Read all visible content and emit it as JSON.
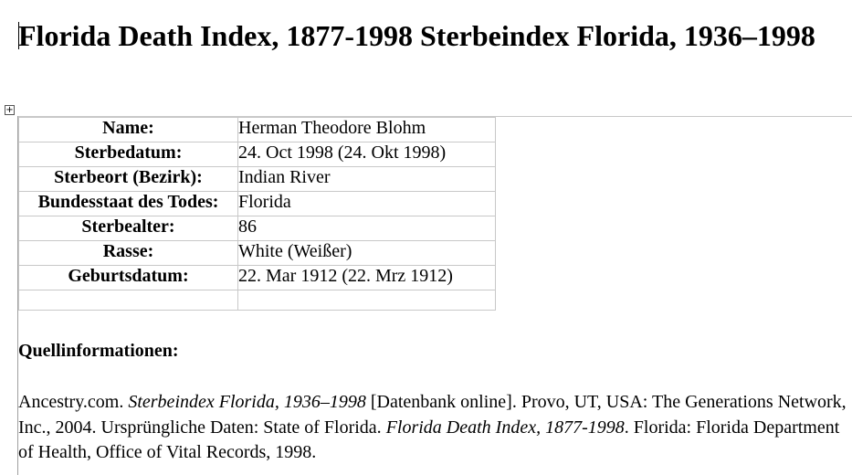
{
  "header": {
    "title": "Florida Death Index, 1877-1998 Sterbeindex Florida, 1936–1998"
  },
  "table": {
    "rows": [
      [
        "Name:",
        "Herman Theodore Blohm"
      ],
      [
        "Sterbedatum:",
        "24. Oct 1998 (24. Okt 1998)"
      ],
      [
        "Sterbeort (Bezirk):",
        "Indian River"
      ],
      [
        "Bundesstaat des Todes:",
        "Florida"
      ],
      [
        "Sterbealter:",
        "86"
      ],
      [
        "Rasse:",
        "White (Weißer)"
      ],
      [
        "Geburtsdatum:",
        "22. Mar 1912 (22. Mrz 1912)"
      ]
    ]
  },
  "source": {
    "heading": "Quellinformationen:",
    "segments": [
      "Ancestry.com. ",
      "Sterbeindex Florida, 1936–1998",
      " [Datenbank online]. Provo, UT, USA: The Generations Network, Inc., 2004. Ursprüngliche Daten: State of Florida. ",
      "Florida Death Index, 1877-1998",
      ". Florida: Florida Department of Health, Office of Vital Records, 1998."
    ]
  }
}
